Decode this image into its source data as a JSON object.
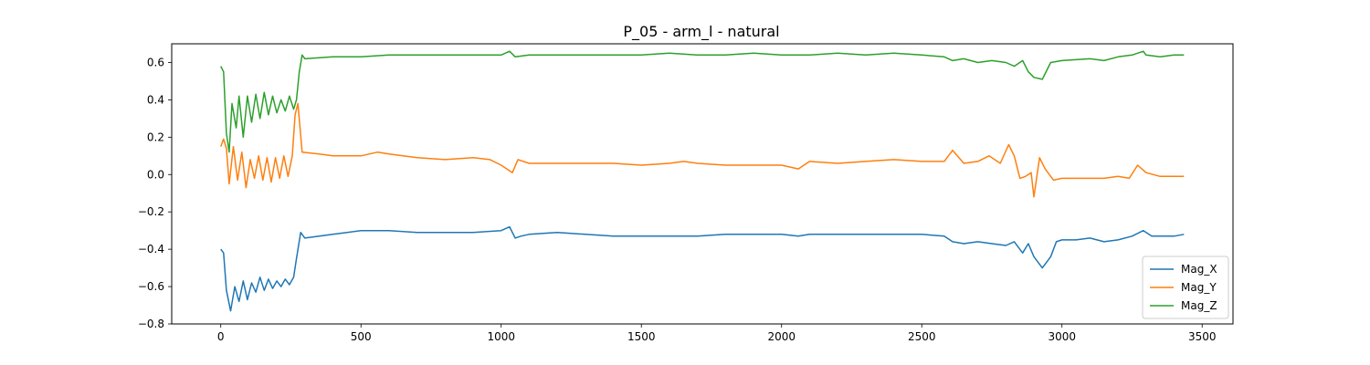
{
  "chart_data": {
    "type": "line",
    "title": "P_05 - arm_l - natural",
    "xlabel": "",
    "ylabel": "",
    "xlim": [
      -175,
      3610
    ],
    "ylim": [
      -0.8,
      0.7
    ],
    "xticks": [
      0,
      500,
      1000,
      1500,
      2000,
      2500,
      3000,
      3500
    ],
    "yticks": [
      -0.8,
      -0.6,
      -0.4,
      -0.2,
      0.0,
      0.2,
      0.4,
      0.6
    ],
    "xtick_labels": [
      "0",
      "500",
      "1000",
      "1500",
      "2000",
      "2500",
      "3000",
      "3500"
    ],
    "ytick_labels": [
      "−0.8",
      "−0.6",
      "−0.4",
      "−0.2",
      "0.0",
      "0.2",
      "0.4",
      "0.6"
    ],
    "grid": false,
    "legend_position": "lower-right",
    "series": [
      {
        "name": "Mag_X",
        "color": "#1f77b4",
        "points": [
          [
            0,
            -0.4
          ],
          [
            10,
            -0.42
          ],
          [
            20,
            -0.62
          ],
          [
            35,
            -0.73
          ],
          [
            50,
            -0.6
          ],
          [
            65,
            -0.68
          ],
          [
            80,
            -0.57
          ],
          [
            95,
            -0.67
          ],
          [
            110,
            -0.58
          ],
          [
            125,
            -0.63
          ],
          [
            140,
            -0.55
          ],
          [
            155,
            -0.62
          ],
          [
            170,
            -0.56
          ],
          [
            185,
            -0.61
          ],
          [
            200,
            -0.57
          ],
          [
            215,
            -0.6
          ],
          [
            230,
            -0.56
          ],
          [
            245,
            -0.59
          ],
          [
            260,
            -0.55
          ],
          [
            270,
            -0.45
          ],
          [
            285,
            -0.31
          ],
          [
            300,
            -0.34
          ],
          [
            400,
            -0.32
          ],
          [
            500,
            -0.3
          ],
          [
            600,
            -0.3
          ],
          [
            700,
            -0.31
          ],
          [
            800,
            -0.31
          ],
          [
            900,
            -0.31
          ],
          [
            1000,
            -0.3
          ],
          [
            1030,
            -0.28
          ],
          [
            1050,
            -0.34
          ],
          [
            1070,
            -0.33
          ],
          [
            1100,
            -0.32
          ],
          [
            1200,
            -0.31
          ],
          [
            1300,
            -0.32
          ],
          [
            1400,
            -0.33
          ],
          [
            1500,
            -0.33
          ],
          [
            1600,
            -0.33
          ],
          [
            1700,
            -0.33
          ],
          [
            1800,
            -0.32
          ],
          [
            1900,
            -0.32
          ],
          [
            2000,
            -0.32
          ],
          [
            2060,
            -0.33
          ],
          [
            2100,
            -0.32
          ],
          [
            2200,
            -0.32
          ],
          [
            2300,
            -0.32
          ],
          [
            2400,
            -0.32
          ],
          [
            2500,
            -0.32
          ],
          [
            2580,
            -0.33
          ],
          [
            2610,
            -0.36
          ],
          [
            2650,
            -0.37
          ],
          [
            2700,
            -0.36
          ],
          [
            2750,
            -0.37
          ],
          [
            2800,
            -0.38
          ],
          [
            2830,
            -0.36
          ],
          [
            2860,
            -0.42
          ],
          [
            2880,
            -0.37
          ],
          [
            2900,
            -0.44
          ],
          [
            2930,
            -0.5
          ],
          [
            2960,
            -0.44
          ],
          [
            2980,
            -0.36
          ],
          [
            3000,
            -0.35
          ],
          [
            3050,
            -0.35
          ],
          [
            3100,
            -0.34
          ],
          [
            3150,
            -0.36
          ],
          [
            3200,
            -0.35
          ],
          [
            3250,
            -0.33
          ],
          [
            3290,
            -0.3
          ],
          [
            3320,
            -0.33
          ],
          [
            3350,
            -0.33
          ],
          [
            3400,
            -0.33
          ],
          [
            3435,
            -0.32
          ]
        ]
      },
      {
        "name": "Mag_Y",
        "color": "#ff7f0e",
        "points": [
          [
            0,
            0.15
          ],
          [
            10,
            0.19
          ],
          [
            20,
            0.14
          ],
          [
            30,
            -0.05
          ],
          [
            45,
            0.15
          ],
          [
            60,
            -0.03
          ],
          [
            75,
            0.12
          ],
          [
            90,
            -0.07
          ],
          [
            105,
            0.08
          ],
          [
            120,
            -0.02
          ],
          [
            135,
            0.1
          ],
          [
            150,
            -0.03
          ],
          [
            165,
            0.09
          ],
          [
            180,
            -0.04
          ],
          [
            195,
            0.09
          ],
          [
            210,
            -0.02
          ],
          [
            225,
            0.1
          ],
          [
            240,
            -0.01
          ],
          [
            255,
            0.1
          ],
          [
            265,
            0.32
          ],
          [
            275,
            0.38
          ],
          [
            290,
            0.12
          ],
          [
            350,
            0.11
          ],
          [
            400,
            0.1
          ],
          [
            500,
            0.1
          ],
          [
            560,
            0.12
          ],
          [
            600,
            0.11
          ],
          [
            700,
            0.09
          ],
          [
            800,
            0.08
          ],
          [
            900,
            0.09
          ],
          [
            960,
            0.08
          ],
          [
            1000,
            0.05
          ],
          [
            1040,
            0.01
          ],
          [
            1060,
            0.08
          ],
          [
            1100,
            0.06
          ],
          [
            1200,
            0.06
          ],
          [
            1300,
            0.06
          ],
          [
            1400,
            0.06
          ],
          [
            1500,
            0.05
          ],
          [
            1600,
            0.06
          ],
          [
            1650,
            0.07
          ],
          [
            1700,
            0.06
          ],
          [
            1800,
            0.05
          ],
          [
            1900,
            0.05
          ],
          [
            2000,
            0.05
          ],
          [
            2060,
            0.03
          ],
          [
            2100,
            0.07
          ],
          [
            2200,
            0.06
          ],
          [
            2300,
            0.07
          ],
          [
            2400,
            0.08
          ],
          [
            2500,
            0.07
          ],
          [
            2580,
            0.07
          ],
          [
            2610,
            0.13
          ],
          [
            2650,
            0.06
          ],
          [
            2700,
            0.07
          ],
          [
            2740,
            0.1
          ],
          [
            2780,
            0.06
          ],
          [
            2810,
            0.16
          ],
          [
            2830,
            0.1
          ],
          [
            2850,
            -0.02
          ],
          [
            2870,
            -0.01
          ],
          [
            2890,
            0.01
          ],
          [
            2900,
            -0.12
          ],
          [
            2920,
            0.09
          ],
          [
            2940,
            0.03
          ],
          [
            2970,
            -0.03
          ],
          [
            3000,
            -0.02
          ],
          [
            3100,
            -0.02
          ],
          [
            3150,
            -0.02
          ],
          [
            3200,
            -0.01
          ],
          [
            3240,
            -0.02
          ],
          [
            3270,
            0.05
          ],
          [
            3300,
            0.01
          ],
          [
            3350,
            -0.01
          ],
          [
            3400,
            -0.01
          ],
          [
            3435,
            -0.01
          ]
        ]
      },
      {
        "name": "Mag_Z",
        "color": "#2ca02c",
        "points": [
          [
            0,
            0.58
          ],
          [
            10,
            0.55
          ],
          [
            20,
            0.22
          ],
          [
            30,
            0.12
          ],
          [
            40,
            0.38
          ],
          [
            55,
            0.25
          ],
          [
            65,
            0.42
          ],
          [
            80,
            0.2
          ],
          [
            95,
            0.42
          ],
          [
            110,
            0.28
          ],
          [
            125,
            0.43
          ],
          [
            140,
            0.3
          ],
          [
            155,
            0.44
          ],
          [
            170,
            0.32
          ],
          [
            185,
            0.42
          ],
          [
            200,
            0.33
          ],
          [
            215,
            0.4
          ],
          [
            230,
            0.34
          ],
          [
            245,
            0.42
          ],
          [
            260,
            0.35
          ],
          [
            270,
            0.4
          ],
          [
            280,
            0.55
          ],
          [
            290,
            0.64
          ],
          [
            300,
            0.62
          ],
          [
            400,
            0.63
          ],
          [
            500,
            0.63
          ],
          [
            600,
            0.64
          ],
          [
            700,
            0.64
          ],
          [
            800,
            0.64
          ],
          [
            900,
            0.64
          ],
          [
            1000,
            0.64
          ],
          [
            1030,
            0.66
          ],
          [
            1050,
            0.63
          ],
          [
            1100,
            0.64
          ],
          [
            1200,
            0.64
          ],
          [
            1300,
            0.64
          ],
          [
            1400,
            0.64
          ],
          [
            1500,
            0.64
          ],
          [
            1600,
            0.65
          ],
          [
            1700,
            0.64
          ],
          [
            1800,
            0.64
          ],
          [
            1900,
            0.65
          ],
          [
            2000,
            0.64
          ],
          [
            2100,
            0.64
          ],
          [
            2200,
            0.65
          ],
          [
            2300,
            0.64
          ],
          [
            2400,
            0.65
          ],
          [
            2500,
            0.64
          ],
          [
            2580,
            0.63
          ],
          [
            2610,
            0.61
          ],
          [
            2650,
            0.62
          ],
          [
            2700,
            0.6
          ],
          [
            2750,
            0.61
          ],
          [
            2800,
            0.6
          ],
          [
            2830,
            0.58
          ],
          [
            2860,
            0.61
          ],
          [
            2880,
            0.55
          ],
          [
            2900,
            0.52
          ],
          [
            2930,
            0.51
          ],
          [
            2960,
            0.6
          ],
          [
            3000,
            0.61
          ],
          [
            3100,
            0.62
          ],
          [
            3150,
            0.61
          ],
          [
            3200,
            0.63
          ],
          [
            3250,
            0.64
          ],
          [
            3290,
            0.66
          ],
          [
            3300,
            0.64
          ],
          [
            3350,
            0.63
          ],
          [
            3400,
            0.64
          ],
          [
            3435,
            0.64
          ]
        ]
      }
    ]
  }
}
